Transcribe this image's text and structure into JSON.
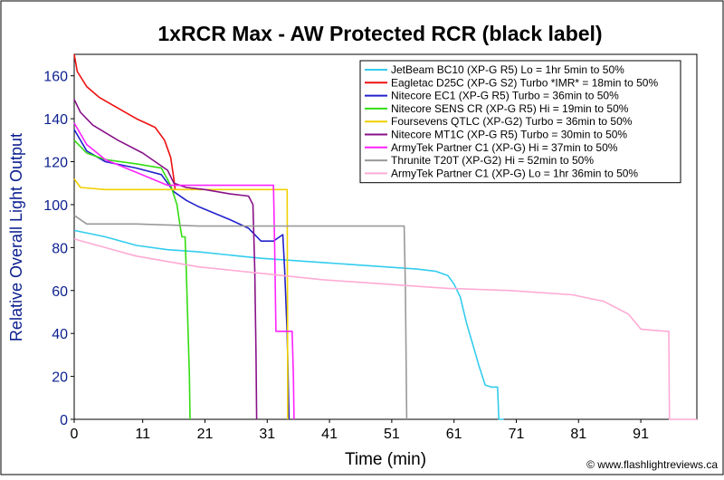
{
  "chart_data": {
    "type": "line",
    "title": "1xRCR Max - AW Protected RCR (black label)",
    "xlabel": "Time (min)",
    "ylabel": "Relative Overall Light Output",
    "xlim": [
      0,
      100
    ],
    "ylim": [
      0,
      170
    ],
    "xticks": [
      0,
      11,
      21,
      31,
      41,
      51,
      61,
      71,
      81,
      91
    ],
    "yticks": [
      0,
      20,
      40,
      60,
      80,
      100,
      120,
      140,
      160
    ],
    "grid": false,
    "legend_position": "top-right",
    "credit": "© www.flashlightreviews.ca",
    "series": [
      {
        "name": "JetBeam BC10 (XP-G R5) Lo = 1hr 5min to 50%",
        "color": "#33ccee",
        "points": [
          [
            0,
            88
          ],
          [
            5,
            85
          ],
          [
            10,
            81
          ],
          [
            15,
            79
          ],
          [
            20,
            78
          ],
          [
            30,
            75
          ],
          [
            40,
            73
          ],
          [
            50,
            71
          ],
          [
            55,
            70
          ],
          [
            58,
            69
          ],
          [
            60,
            67
          ],
          [
            61,
            63
          ],
          [
            62,
            57
          ],
          [
            63,
            45
          ],
          [
            64,
            35
          ],
          [
            65,
            25
          ],
          [
            66,
            16
          ],
          [
            67,
            15
          ],
          [
            68,
            15
          ],
          [
            68.2,
            0
          ],
          [
            69,
            0
          ]
        ]
      },
      {
        "name": "Eagletac D25C (XP-G S2) Turbo *IMR* = 18min to 50%",
        "color": "#ee1111",
        "points": [
          [
            0,
            170
          ],
          [
            0.5,
            162
          ],
          [
            2,
            155
          ],
          [
            4,
            150
          ],
          [
            7,
            145
          ],
          [
            10,
            140
          ],
          [
            13,
            136
          ],
          [
            14.5,
            130
          ],
          [
            15.5,
            122
          ],
          [
            16,
            112
          ],
          [
            16.2,
            107
          ]
        ]
      },
      {
        "name": "Nitecore EC1 (XP-G R5) Turbo = 36min to 50%",
        "color": "#2222cc",
        "points": [
          [
            0,
            135
          ],
          [
            2,
            125
          ],
          [
            5,
            120
          ],
          [
            10,
            117
          ],
          [
            14,
            114
          ],
          [
            16,
            106
          ],
          [
            18,
            102
          ],
          [
            20,
            99
          ],
          [
            25,
            93
          ],
          [
            28,
            89
          ],
          [
            30,
            83
          ],
          [
            32,
            83
          ],
          [
            33,
            85
          ],
          [
            33.5,
            86
          ],
          [
            33.8,
            70
          ],
          [
            34.2,
            40
          ],
          [
            34.5,
            0
          ]
        ]
      },
      {
        "name": "Nitecore SENS CR (XP-G R5) Hi = 19min to 50%",
        "color": "#33dd11",
        "points": [
          [
            0,
            130
          ],
          [
            2,
            124
          ],
          [
            5,
            121
          ],
          [
            10,
            119
          ],
          [
            14,
            117
          ],
          [
            15.5,
            109
          ],
          [
            16.5,
            100
          ],
          [
            17,
            90
          ],
          [
            17.3,
            85
          ],
          [
            17.8,
            85
          ],
          [
            18,
            70
          ],
          [
            18.3,
            40
          ],
          [
            18.5,
            20
          ],
          [
            18.6,
            0
          ]
        ]
      },
      {
        "name": "Foursevens QTLC (XP-G2) Turbo = 36min to 50%",
        "color": "#f0d000",
        "points": [
          [
            0,
            112
          ],
          [
            1,
            108
          ],
          [
            5,
            107
          ],
          [
            15,
            107
          ],
          [
            25,
            107
          ],
          [
            30,
            107
          ],
          [
            33,
            107
          ],
          [
            34.2,
            107
          ],
          [
            34.3,
            0
          ]
        ]
      },
      {
        "name": "Nitecore MT1C (XP-G R5) Turbo = 30min to 50%",
        "color": "#881188",
        "points": [
          [
            0,
            149
          ],
          [
            1,
            143
          ],
          [
            3,
            137
          ],
          [
            7,
            130
          ],
          [
            11,
            124
          ],
          [
            13,
            120
          ],
          [
            15,
            116
          ],
          [
            16,
            110
          ],
          [
            18,
            108
          ],
          [
            21,
            107
          ],
          [
            25,
            105
          ],
          [
            28,
            104
          ],
          [
            28.7,
            100
          ],
          [
            29,
            70
          ],
          [
            29.2,
            30
          ],
          [
            29.3,
            0
          ]
        ]
      },
      {
        "name": "ArmyTek Partner C1 (XP-G) Hi = 37min to 50%",
        "color": "#ff22ff",
        "points": [
          [
            0,
            138
          ],
          [
            2,
            128
          ],
          [
            5,
            121
          ],
          [
            10,
            115
          ],
          [
            15,
            109
          ],
          [
            20,
            109
          ],
          [
            28,
            109
          ],
          [
            32,
            109
          ],
          [
            32.2,
            80
          ],
          [
            32.4,
            41
          ],
          [
            35,
            41
          ],
          [
            35.2,
            20
          ],
          [
            35.3,
            0
          ]
        ]
      },
      {
        "name": "Thrunite T20T (XP-G2) Hi = 52min to 50%",
        "color": "#999999",
        "points": [
          [
            0,
            95
          ],
          [
            2,
            91
          ],
          [
            10,
            91
          ],
          [
            20,
            90
          ],
          [
            30,
            90
          ],
          [
            40,
            90
          ],
          [
            50,
            90
          ],
          [
            53,
            90
          ],
          [
            53.2,
            60
          ],
          [
            53.4,
            0
          ]
        ]
      },
      {
        "name": "ArmyTek Partner C1 (XP-G) Lo = 1hr 36min to 50%",
        "color": "#ffaad4",
        "points": [
          [
            0,
            84
          ],
          [
            5,
            80
          ],
          [
            10,
            76
          ],
          [
            20,
            71
          ],
          [
            30,
            68
          ],
          [
            40,
            65
          ],
          [
            50,
            63
          ],
          [
            60,
            61
          ],
          [
            70,
            60
          ],
          [
            80,
            58
          ],
          [
            85,
            55
          ],
          [
            89,
            49
          ],
          [
            91,
            42
          ],
          [
            95,
            41
          ],
          [
            95.5,
            41
          ],
          [
            95.6,
            0
          ],
          [
            100,
            0
          ]
        ]
      }
    ]
  }
}
